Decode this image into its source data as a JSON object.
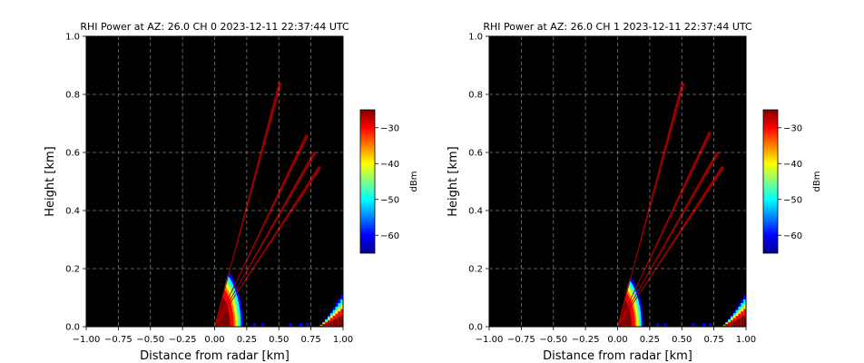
{
  "colormap": [
    "#00008f",
    "#0000ff",
    "#0080ff",
    "#00ffff",
    "#80ff80",
    "#ffff00",
    "#ff8000",
    "#ff0000",
    "#800000"
  ],
  "chart_data": [
    {
      "type": "heatmap",
      "title": "RHI Power at AZ: 26.0 CH 0 2023-12-11 22:37:44 UTC",
      "xlabel": "Distance from radar [km]",
      "ylabel": "Height [km]",
      "xlim": [
        -1.0,
        1.0
      ],
      "ylim": [
        0.0,
        1.0
      ],
      "xticks": [
        "−1.00",
        "−0.75",
        "−0.50",
        "−0.25",
        "0.00",
        "0.25",
        "0.50",
        "0.75",
        "1.00"
      ],
      "yticks": [
        "0.0",
        "0.2",
        "0.4",
        "0.6",
        "0.8",
        "1.0"
      ],
      "grid": true,
      "background": "#000000",
      "colorbar": {
        "label": "dBm",
        "range": [
          -65,
          -25
        ],
        "ticks": [
          "−30",
          "−40",
          "−50",
          "−60"
        ]
      },
      "beams": [
        {
          "end_x": 0.51,
          "end_y": 0.84
        },
        {
          "end_x": 0.72,
          "end_y": 0.66
        },
        {
          "end_x": 0.78,
          "end_y": 0.6
        },
        {
          "end_x": 0.82,
          "end_y": 0.55
        }
      ],
      "near_field": {
        "max_radius_km": 0.22,
        "max_elevation_deg": 60
      },
      "far_echo": {
        "x_range": [
          0.8,
          1.0
        ],
        "max_height": 0.11
      }
    },
    {
      "type": "heatmap",
      "title": "RHI Power at AZ: 26.0 CH 1 2023-12-11 22:37:44 UTC",
      "xlabel": "Distance from radar [km]",
      "ylabel": "Height [km]",
      "xlim": [
        -1.0,
        1.0
      ],
      "ylim": [
        0.0,
        1.0
      ],
      "xticks": [
        "−1.00",
        "−0.75",
        "−0.50",
        "−0.25",
        "0.00",
        "0.25",
        "0.50",
        "0.75",
        "1.00"
      ],
      "yticks": [
        "0.0",
        "0.2",
        "0.4",
        "0.6",
        "0.8",
        "1.0"
      ],
      "grid": true,
      "background": "#000000",
      "colorbar": {
        "label": "dBm",
        "range": [
          -65,
          -25
        ],
        "ticks": [
          "−30",
          "−40",
          "−50",
          "−60"
        ]
      },
      "beams": [
        {
          "end_x": 0.51,
          "end_y": 0.84
        },
        {
          "end_x": 0.72,
          "end_y": 0.67
        },
        {
          "end_x": 0.78,
          "end_y": 0.6
        },
        {
          "end_x": 0.82,
          "end_y": 0.55
        }
      ],
      "near_field": {
        "max_radius_km": 0.2,
        "max_elevation_deg": 60
      },
      "far_echo": {
        "x_range": [
          0.8,
          1.0
        ],
        "max_height": 0.11
      }
    }
  ]
}
